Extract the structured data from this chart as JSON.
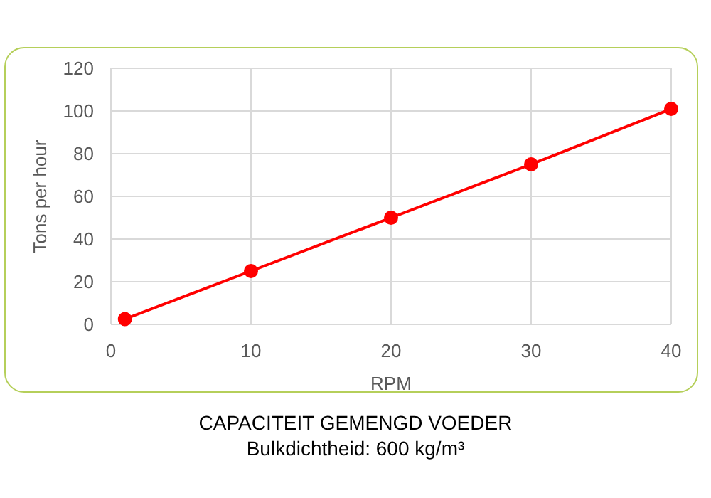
{
  "chart_data": {
    "type": "line",
    "title": "CAPACITEIT GEMENGD VOEDER",
    "subtitle": "Bulkdichtheid: 600 kg/m³",
    "xlabel": "RPM",
    "ylabel": "Tons per hour",
    "x": [
      1,
      10,
      20,
      30,
      40
    ],
    "series": [
      {
        "color": "#ff0000",
        "values": [
          2.5,
          25,
          50,
          75,
          101
        ]
      }
    ],
    "xlim": [
      0,
      40
    ],
    "xticks": [
      0,
      10,
      20,
      30,
      40
    ],
    "ylim": [
      0,
      120
    ],
    "yticks": [
      0,
      20,
      40,
      60,
      80,
      100,
      120
    ],
    "grid": true,
    "marker": "circle",
    "line_style": "solid"
  }
}
